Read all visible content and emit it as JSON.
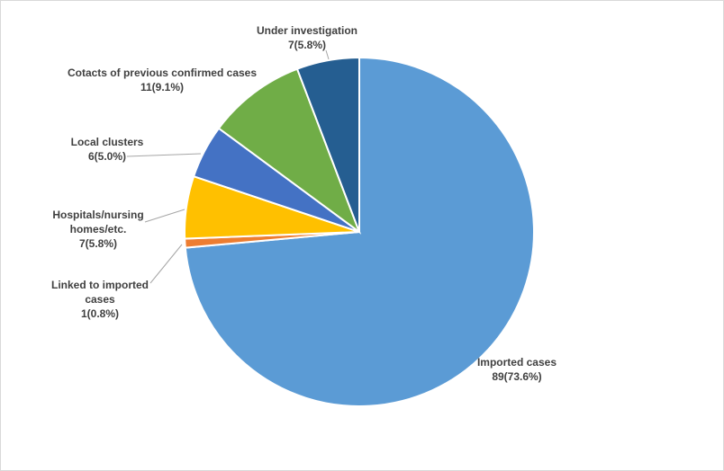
{
  "chart_data": {
    "type": "pie",
    "title": "",
    "start_angle_deg": 0,
    "direction": "clockwise",
    "slices": [
      {
        "name": "Imported cases",
        "value": 89,
        "percent": "73.6%",
        "label_lines": [
          "Imported cases"
        ],
        "value_text": "89(73.6%)",
        "color": "#5b9bd5"
      },
      {
        "name": "Linked to imported cases",
        "value": 1,
        "percent": "0.8%",
        "label_lines": [
          "Linked to imported",
          "cases"
        ],
        "value_text": "1(0.8%)",
        "color": "#ed7d31"
      },
      {
        "name": "Hospitals/nursing homes/etc.",
        "value": 7,
        "percent": "5.8%",
        "label_lines": [
          "Hospitals/nursing",
          "homes/etc."
        ],
        "value_text": "7(5.8%)",
        "color": "#ffc000"
      },
      {
        "name": "Local clusters",
        "value": 6,
        "percent": "5.0%",
        "label_lines": [
          "Local clusters"
        ],
        "value_text": "6(5.0%)",
        "color": "#4472c4"
      },
      {
        "name": "Cotacts of previous confirmed cases",
        "value": 11,
        "percent": "9.1%",
        "label_lines": [
          "Cotacts of previous confirmed cases"
        ],
        "value_text": "11(9.1%)",
        "color": "#70ad47"
      },
      {
        "name": "Under investigation",
        "value": 7,
        "percent": "5.8%",
        "label_lines": [
          "Under investigation"
        ],
        "value_text": "7(5.8%)",
        "color": "#255e91"
      }
    ]
  }
}
